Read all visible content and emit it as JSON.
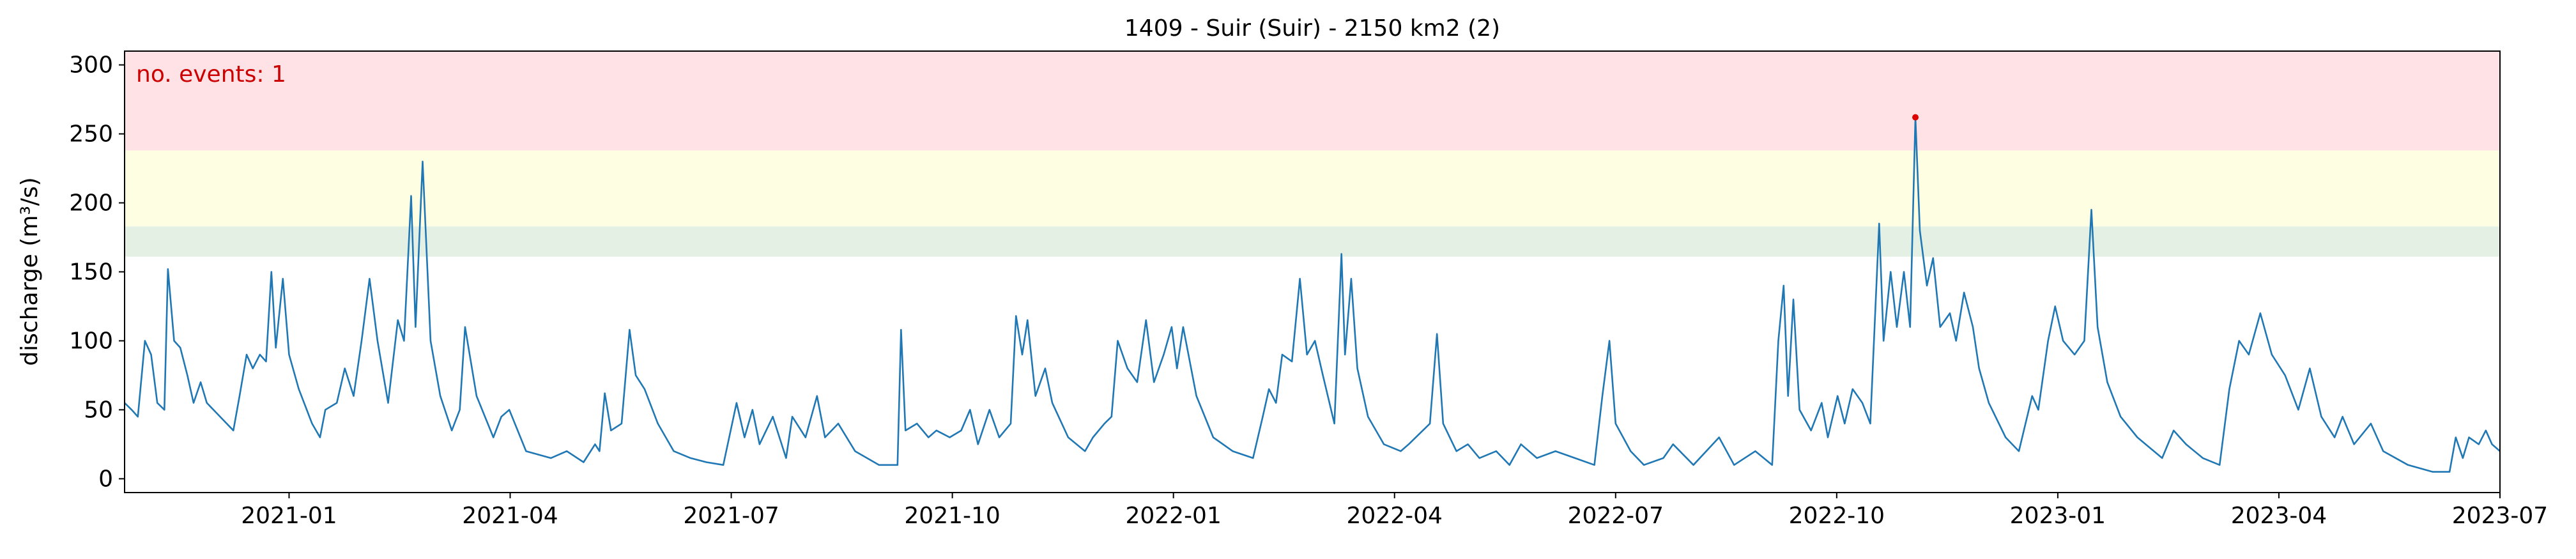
{
  "chart_data": {
    "type": "line",
    "title": "1409 - Suir (Suir) - 2150 km2 (2)",
    "y_label": "discharge (m³/s)",
    "annotation": "no. events: 1",
    "annotation_color": "#cc0000",
    "xlim": [
      2020.814,
      2023.5
    ],
    "xticks": [
      {
        "value": 2021.0,
        "label": "2021-01"
      },
      {
        "value": 2021.25,
        "label": "2021-04"
      },
      {
        "value": 2021.5,
        "label": "2021-07"
      },
      {
        "value": 2021.75,
        "label": "2021-10"
      },
      {
        "value": 2022.0,
        "label": "2022-01"
      },
      {
        "value": 2022.25,
        "label": "2022-04"
      },
      {
        "value": 2022.5,
        "label": "2022-07"
      },
      {
        "value": 2022.75,
        "label": "2022-10"
      },
      {
        "value": 2023.0,
        "label": "2023-01"
      },
      {
        "value": 2023.25,
        "label": "2023-04"
      },
      {
        "value": 2023.5,
        "label": "2023-07"
      }
    ],
    "ylim": [
      -10,
      310
    ],
    "yticks": [
      0,
      50,
      100,
      150,
      200,
      250,
      300
    ],
    "bands": [
      {
        "from": 161,
        "to": 183,
        "color": "#e4f0e4"
      },
      {
        "from": 183,
        "to": 238,
        "color": "#fefee3"
      },
      {
        "from": 238,
        "to": 310,
        "color": "#ffe2e5"
      }
    ],
    "series": [
      {
        "color": "#1f77b4",
        "x": [
          2020.814,
          2020.822,
          2020.829,
          2020.837,
          2020.844,
          2020.851,
          2020.859,
          2020.863,
          2020.87,
          2020.877,
          2020.885,
          2020.892,
          2020.9,
          2020.907,
          2020.922,
          2020.937,
          2020.944,
          2020.952,
          2020.959,
          2020.967,
          2020.974,
          2020.98,
          2020.985,
          2020.993,
          2021.0,
          2021.011,
          2021.026,
          2021.035,
          2021.041,
          2021.054,
          2021.063,
          2021.073,
          2021.082,
          2021.091,
          2021.1,
          2021.112,
          2021.123,
          2021.13,
          2021.138,
          2021.143,
          2021.151,
          2021.16,
          2021.171,
          2021.184,
          2021.193,
          2021.199,
          2021.212,
          2021.231,
          2021.24,
          2021.249,
          2021.268,
          2021.296,
          2021.314,
          2021.333,
          2021.346,
          2021.351,
          2021.357,
          2021.364,
          2021.376,
          2021.385,
          2021.392,
          2021.402,
          2021.417,
          2021.435,
          2021.454,
          2021.472,
          2021.491,
          2021.506,
          2021.515,
          2021.524,
          2021.532,
          2021.547,
          2021.562,
          2021.569,
          2021.584,
          2021.597,
          2021.606,
          2021.621,
          2021.64,
          2021.667,
          2021.688,
          2021.692,
          2021.697,
          2021.71,
          2021.723,
          2021.732,
          2021.747,
          2021.76,
          2021.77,
          2021.779,
          2021.792,
          2021.803,
          2021.816,
          2021.822,
          2021.829,
          2021.835,
          2021.844,
          2021.855,
          2021.863,
          2021.881,
          2021.9,
          2021.909,
          2021.922,
          2021.93,
          2021.937,
          2021.948,
          2021.959,
          2021.969,
          2021.978,
          2021.989,
          2021.998,
          2022.004,
          2022.011,
          2022.026,
          2022.045,
          2022.067,
          2022.09,
          2022.101,
          2022.108,
          2022.116,
          2022.123,
          2022.134,
          2022.143,
          2022.151,
          2022.16,
          2022.169,
          2022.182,
          2022.19,
          2022.194,
          2022.201,
          2022.208,
          2022.22,
          2022.238,
          2022.257,
          2022.266,
          2022.29,
          2022.298,
          2022.305,
          2022.32,
          2022.333,
          2022.346,
          2022.365,
          2022.38,
          2022.393,
          2022.411,
          2022.432,
          2022.454,
          2022.476,
          2022.485,
          2022.493,
          2022.5,
          2022.517,
          2022.532,
          2022.554,
          2022.565,
          2022.588,
          2022.617,
          2022.634,
          2022.658,
          2022.677,
          2022.684,
          2022.69,
          2022.695,
          2022.701,
          2022.708,
          2022.721,
          2022.733,
          2022.74,
          2022.751,
          2022.759,
          2022.768,
          2022.779,
          2022.788,
          2022.798,
          2022.803,
          2022.811,
          2022.818,
          2022.826,
          2022.833,
          2022.839,
          2022.844,
          2022.852,
          2022.859,
          2022.867,
          2022.878,
          2022.885,
          2022.894,
          2022.904,
          2022.911,
          2022.922,
          2022.941,
          2022.956,
          2022.971,
          2022.978,
          2022.989,
          2022.997,
          2023.006,
          2023.019,
          2023.03,
          2023.038,
          2023.045,
          2023.056,
          2023.071,
          2023.09,
          2023.118,
          2023.131,
          2023.145,
          2023.164,
          2023.183,
          2023.194,
          2023.205,
          2023.216,
          2023.229,
          2023.242,
          2023.257,
          2023.272,
          2023.285,
          2023.298,
          2023.313,
          2023.322,
          2023.335,
          2023.354,
          2023.368,
          2023.396,
          2023.424,
          2023.443,
          2023.45,
          2023.458,
          2023.465,
          2023.476,
          2023.484,
          2023.491,
          2023.5
        ],
        "values": [
          55,
          50,
          45,
          100,
          90,
          55,
          50,
          152,
          100,
          95,
          75,
          55,
          70,
          55,
          45,
          35,
          60,
          90,
          80,
          90,
          85,
          150,
          95,
          145,
          90,
          65,
          40,
          30,
          50,
          55,
          80,
          60,
          100,
          145,
          100,
          55,
          115,
          100,
          205,
          110,
          230,
          100,
          60,
          35,
          50,
          110,
          60,
          30,
          45,
          50,
          20,
          15,
          20,
          12,
          25,
          20,
          62,
          35,
          40,
          108,
          75,
          65,
          40,
          20,
          15,
          12,
          10,
          55,
          30,
          50,
          25,
          45,
          15,
          45,
          30,
          60,
          30,
          40,
          20,
          10,
          10,
          108,
          35,
          40,
          30,
          35,
          30,
          35,
          50,
          25,
          50,
          30,
          40,
          118,
          90,
          115,
          60,
          80,
          55,
          30,
          20,
          30,
          40,
          45,
          100,
          80,
          70,
          115,
          70,
          90,
          110,
          80,
          110,
          60,
          30,
          20,
          15,
          45,
          65,
          55,
          90,
          85,
          145,
          90,
          100,
          75,
          40,
          163,
          90,
          145,
          80,
          45,
          25,
          20,
          25,
          40,
          105,
          40,
          20,
          25,
          15,
          20,
          10,
          25,
          15,
          20,
          15,
          10,
          60,
          100,
          40,
          20,
          10,
          15,
          25,
          10,
          30,
          10,
          20,
          10,
          100,
          140,
          60,
          130,
          50,
          35,
          55,
          30,
          60,
          40,
          65,
          55,
          40,
          185,
          100,
          150,
          110,
          150,
          110,
          262,
          180,
          140,
          160,
          110,
          120,
          100,
          135,
          110,
          80,
          55,
          30,
          20,
          60,
          50,
          100,
          125,
          100,
          90,
          100,
          195,
          110,
          70,
          45,
          30,
          15,
          35,
          25,
          15,
          10,
          65,
          100,
          90,
          120,
          90,
          75,
          50,
          80,
          45,
          30,
          45,
          25,
          40,
          20,
          10,
          5,
          5,
          30,
          15,
          30,
          25,
          35,
          25,
          20
        ]
      },
      {
        "color": "#dd0000",
        "marker": "point",
        "x": [
          2022.839
        ],
        "values": [
          262
        ]
      }
    ]
  }
}
